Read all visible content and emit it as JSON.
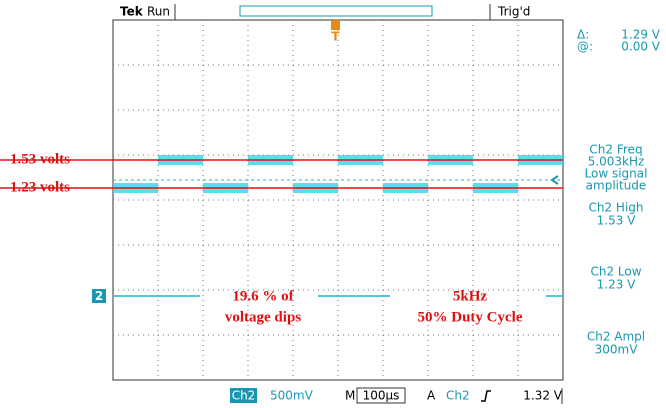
{
  "header": {
    "brand": "Tek",
    "status": "Run",
    "trigger_marker": "T",
    "trigger_state": "Trig'd"
  },
  "cursor": {
    "delta_label": "Δ:",
    "delta_value": "1.29 V",
    "at_label": "@:",
    "at_value": "0.00 V"
  },
  "annotations": {
    "high_level": "1.53 volts",
    "low_level": "1.23 volts",
    "dips": [
      "19.6 % of",
      "voltage dips"
    ],
    "frequency": [
      "5kHz",
      "50% Duty Cycle"
    ]
  },
  "channel_marker": "2",
  "measurements": [
    {
      "lines": [
        "Ch2 Freq",
        "5.003kHz",
        "Low signal",
        "amplitude"
      ]
    },
    {
      "lines": [
        "Ch2 High",
        "1.53 V"
      ]
    },
    {
      "lines": [
        "Ch2 Low",
        "1.23 V"
      ]
    },
    {
      "lines": [
        "Ch2 Ampl",
        "300mV"
      ]
    }
  ],
  "footer": {
    "channel": "Ch2",
    "scale": "500mV",
    "time_prefix": "M",
    "time_scale": "100µs",
    "trigger_prefix": "A",
    "trigger_channel": "Ch2",
    "trigger_level": "1.32 V"
  }
}
